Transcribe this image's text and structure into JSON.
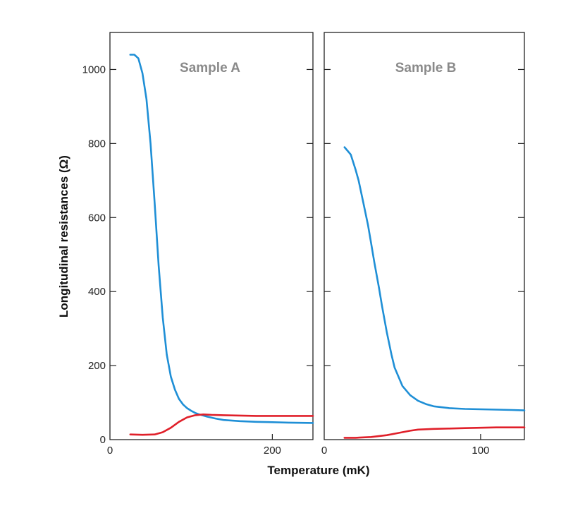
{
  "chart_data": {
    "type": "line",
    "ylabel": "Longitudinal resistances (Ω)",
    "xlabel": "Temperature (mK)",
    "colors": {
      "blue": "#1f8fd6",
      "red": "#e0202a"
    },
    "panels": [
      {
        "id": "A",
        "title": "Sample A",
        "xlim": [
          0,
          250
        ],
        "ylim": [
          0,
          1100
        ],
        "xticks": [
          0,
          200
        ],
        "yticks": [
          0,
          200,
          400,
          600,
          800,
          1000
        ],
        "series": [
          {
            "name": "blue",
            "color": "#1f8fd6",
            "x": [
              25,
              30,
              35,
              40,
              45,
              50,
              55,
              60,
              65,
              70,
              75,
              80,
              85,
              90,
              95,
              100,
              105,
              110,
              120,
              130,
              140,
              160,
              180,
              200,
              220,
              250
            ],
            "y": [
              1040,
              1040,
              1030,
              990,
              920,
              800,
              640,
              470,
              330,
              230,
              170,
              135,
              110,
              95,
              85,
              78,
              72,
              68,
              62,
              57,
              53,
              50,
              48,
              47,
              46,
              45
            ]
          },
          {
            "name": "red",
            "color": "#e0202a",
            "x": [
              25,
              40,
              55,
              65,
              75,
              85,
              95,
              105,
              115,
              125,
              140,
              160,
              180,
              200,
              220,
              250
            ],
            "y": [
              14,
              13,
              14,
              20,
              32,
              48,
              60,
              66,
              68,
              67,
              66,
              65,
              64,
              64,
              64,
              64
            ]
          }
        ]
      },
      {
        "id": "B",
        "title": "Sample B",
        "xlim": [
          0,
          128
        ],
        "ylim": [
          0,
          1100
        ],
        "xticks": [
          0,
          100
        ],
        "yticks": [
          0,
          200,
          400,
          600,
          800,
          1000
        ],
        "series": [
          {
            "name": "blue",
            "color": "#1f8fd6",
            "x": [
              13,
              15,
              17,
              20,
              22,
              25,
              28,
              30,
              32,
              35,
              37,
              40,
              43,
              45,
              48,
              50,
              55,
              60,
              65,
              70,
              80,
              90,
              100,
              110,
              120,
              128
            ],
            "y": [
              790,
              780,
              770,
              730,
              700,
              640,
              580,
              530,
              480,
              410,
              360,
              290,
              230,
              195,
              165,
              145,
              120,
              105,
              96,
              90,
              85,
              83,
              82,
              81,
              80,
              79
            ]
          },
          {
            "name": "red",
            "color": "#e0202a",
            "x": [
              13,
              20,
              30,
              40,
              45,
              50,
              55,
              60,
              70,
              80,
              90,
              100,
              110,
              120,
              128
            ],
            "y": [
              5,
              5,
              7,
              12,
              16,
              20,
              24,
              27,
              29,
              30,
              31,
              32,
              33,
              33,
              33
            ]
          }
        ]
      }
    ]
  }
}
